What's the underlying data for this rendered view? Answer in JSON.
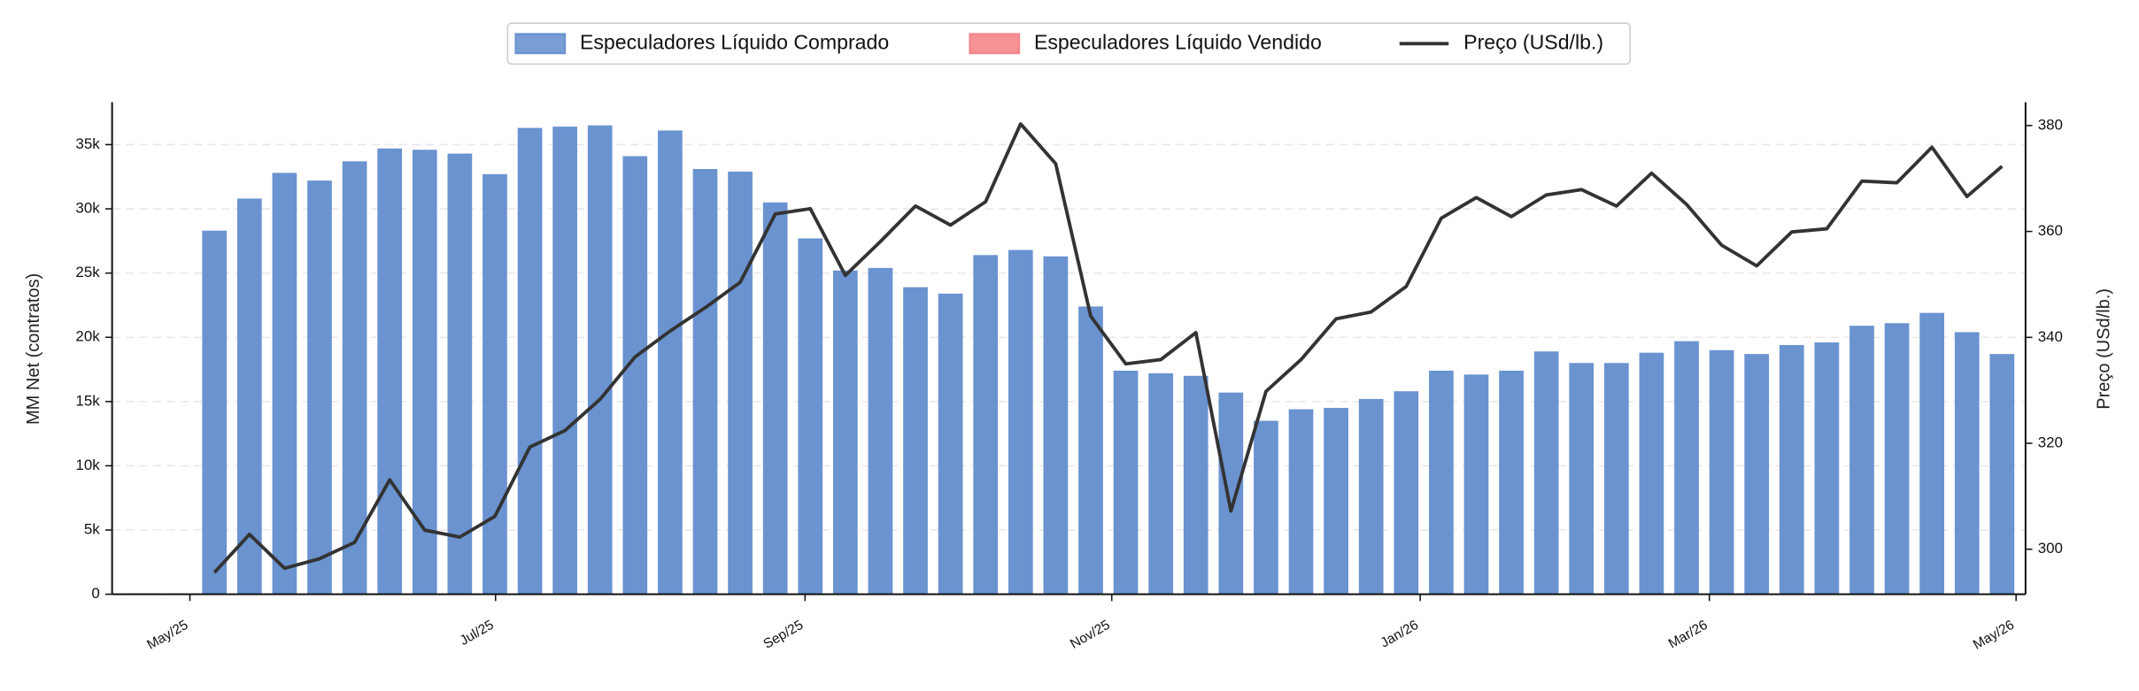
{
  "chart_data": {
    "type": "bar_line",
    "categories": [
      null,
      null,
      null,
      null,
      null,
      null,
      null,
      null,
      null,
      null,
      null,
      null,
      null,
      null,
      null,
      null,
      null,
      null,
      null,
      null,
      null,
      null,
      null,
      null,
      null,
      null,
      null,
      null,
      null,
      null,
      null,
      null,
      null,
      null,
      null,
      null,
      null,
      null,
      null,
      null,
      null,
      null,
      null,
      null,
      null,
      null,
      null,
      null,
      null,
      null,
      null,
      null
    ],
    "series": [
      {
        "name": "Especuladores Líquido Comprado",
        "type": "bar",
        "color": "#6a93d0",
        "values": [
          28300,
          30800,
          32800,
          32200,
          33700,
          34700,
          34600,
          34300,
          32700,
          36300,
          36400,
          36500,
          34100,
          36100,
          33100,
          32900,
          30500,
          27700,
          25200,
          25400,
          23900,
          23400,
          26400,
          26800,
          26300,
          22400,
          17400,
          17200,
          17000,
          15700,
          13500,
          14400,
          14500,
          15200,
          15800,
          17400,
          17100,
          17400,
          18900,
          18000,
          18000,
          18800,
          19700,
          19000,
          18700,
          19400,
          19600,
          20900,
          21100,
          21900,
          20400,
          18700
        ]
      },
      {
        "name": "Especuladores Líquido Vendido",
        "type": "bar",
        "color": "#f4868a",
        "values": [
          null,
          null,
          null,
          null,
          null,
          null,
          null,
          null,
          null,
          null,
          null,
          null,
          null,
          null,
          null,
          null,
          null,
          null,
          null,
          null,
          null,
          null,
          null,
          null,
          null,
          null,
          null,
          null,
          null,
          null,
          null,
          null,
          null,
          null,
          null,
          null,
          null,
          null,
          null,
          null,
          null,
          null,
          null,
          null,
          null,
          null,
          null,
          null,
          null,
          null,
          null,
          null
        ]
      },
      {
        "name": "Preço (USd/lb.)",
        "type": "line",
        "axis": "y2",
        "color": "#333333",
        "values": [
          295.6,
          302.8,
          296.4,
          298.2,
          301.3,
          313.1,
          303.6,
          302.3,
          306.2,
          319.3,
          322.4,
          328.3,
          336.3,
          341.2,
          345.6,
          350.4,
          363.3,
          364.3,
          351.7,
          358.1,
          364.8,
          361.2,
          365.6,
          380.3,
          372.8,
          344.0,
          335.0,
          335.8,
          340.9,
          307.2,
          329.8,
          335.8,
          343.5,
          344.8,
          349.6,
          362.5,
          366.4,
          362.8,
          366.9,
          367.9,
          364.8,
          371.0,
          365.1,
          357.4,
          353.5,
          359.9,
          360.5,
          369.5,
          369.2,
          375.9,
          366.6,
          372.3
        ]
      }
    ],
    "ylabel": "MM Net (contratos)",
    "y2label": "Preço (USd/lb.)",
    "xlim": [
      -2.92,
      51.67
    ],
    "xticks": [
      {
        "value": -0.7,
        "label": "May/25"
      },
      {
        "value": 8.02,
        "label": "Jul/25"
      },
      {
        "value": 16.85,
        "label": "Sep/25"
      },
      {
        "value": 25.6,
        "label": "Nov/25"
      },
      {
        "value": 34.4,
        "label": "Jan/26"
      },
      {
        "value": 42.65,
        "label": "Mar/26"
      },
      {
        "value": 51.4,
        "label": "May/26"
      }
    ],
    "ylim": [
      0,
      38300
    ],
    "yticks": [
      0,
      {
        "value": 5000,
        "label": "5k"
      },
      {
        "value": 10000,
        "label": "10k"
      },
      {
        "value": 15000,
        "label": "15k"
      },
      {
        "value": 20000,
        "label": "20k"
      },
      {
        "value": 25000,
        "label": "25k"
      },
      {
        "value": 30000,
        "label": "30k"
      },
      {
        "value": 35000,
        "label": "35k"
      }
    ],
    "y2lim": [
      291.5,
      384.4
    ],
    "y2ticks": [
      300,
      320,
      340,
      360,
      380
    ],
    "grid": true,
    "legend": "top"
  }
}
